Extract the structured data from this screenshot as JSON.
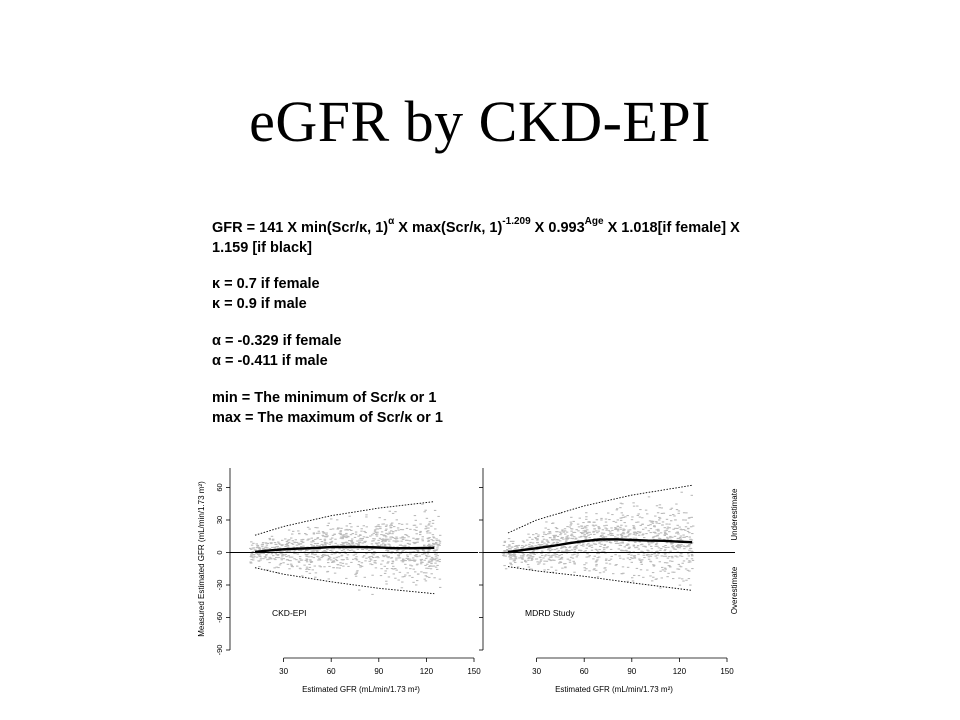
{
  "slide": {
    "title": "eGFR by CKD-EPI"
  },
  "equation": {
    "line1_parts": {
      "a": "GFR = 141 X min(Scr/κ, 1)",
      "a_sup": "α",
      "b": " X max(Scr/κ, 1)",
      "b_sup": "-1.209",
      "c": " X 0.993",
      "c_sup": "Age",
      "d": "  X  1.018[if female]  X"
    },
    "line2": "1.159 [if black]",
    "kappa_female": "κ = 0.7 if female",
    "kappa_male": "κ = 0.9 if male",
    "alpha_female": "α = -0.329 if female",
    "alpha_male": "α =  -0.411 if male",
    "min_def": "min = The minimum of Scr/κ or 1",
    "max_def": "max = The maximum of Scr/κ or 1"
  },
  "chart_data": [
    {
      "type": "scatter",
      "panel_label": "CKD-EPI",
      "ylabel": "Measured Estimated GFR (mL/min/1.73 m²)",
      "xlabel": "Estimated GFR (mL/min/1.73 m²)",
      "xlim": [
        0,
        150
      ],
      "ylim": [
        -90,
        78
      ],
      "x_ticks": [
        30,
        60,
        90,
        120,
        150
      ],
      "y_ticks": [
        -90,
        -60,
        -30,
        0,
        30,
        60
      ],
      "point_color": "#bbbbbb",
      "smooth_line": {
        "x": [
          12,
          20,
          30,
          40,
          50,
          60,
          70,
          80,
          90,
          100,
          110,
          120,
          125
        ],
        "y": [
          0.5,
          1.8,
          3.0,
          3.6,
          4.2,
          5.0,
          5.2,
          5.0,
          4.6,
          4.0,
          4.0,
          4.2,
          4.3
        ]
      },
      "upper_band": {
        "x": [
          12,
          30,
          60,
          90,
          125
        ],
        "y": [
          16,
          24,
          34,
          41,
          47
        ]
      },
      "lower_band": {
        "x": [
          12,
          30,
          60,
          90,
          125
        ],
        "y": [
          -14,
          -20,
          -27,
          -33,
          -38
        ]
      }
    },
    {
      "type": "scatter",
      "panel_label": "MDRD Study",
      "xlabel": "Estimated GFR (mL/min/1.73 m²)",
      "right_label_top": "Underestimate",
      "right_label_bottom": "Overestimate",
      "xlim": [
        0,
        150
      ],
      "ylim": [
        -90,
        78
      ],
      "x_ticks": [
        30,
        60,
        90,
        120,
        150
      ],
      "point_color": "#bbbbbb",
      "smooth_line": {
        "x": [
          12,
          20,
          30,
          40,
          50,
          60,
          70,
          80,
          90,
          100,
          110,
          120,
          128
        ],
        "y": [
          0.5,
          2.0,
          4.0,
          6.0,
          8.5,
          10.5,
          12.0,
          12.2,
          11.5,
          11.0,
          10.8,
          10.0,
          9.5
        ]
      },
      "upper_band": {
        "x": [
          12,
          30,
          60,
          90,
          128
        ],
        "y": [
          18,
          30,
          43,
          53,
          62
        ]
      },
      "lower_band": {
        "x": [
          12,
          30,
          60,
          90,
          128
        ],
        "y": [
          -13,
          -17,
          -22,
          -28,
          -35
        ]
      }
    }
  ]
}
